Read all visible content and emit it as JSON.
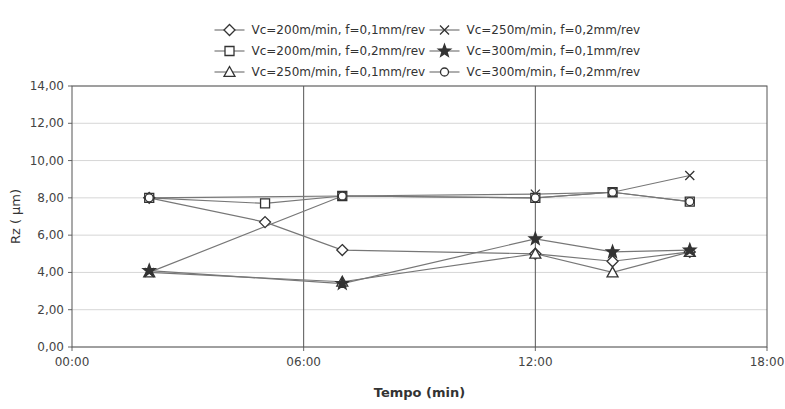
{
  "chart_data": {
    "type": "line",
    "xlabel": "Tempo (min)",
    "ylabel": "Rz ( μm)",
    "xlim": [
      0,
      1080
    ],
    "ylim": [
      0,
      14
    ],
    "xticks": [
      {
        "value": 0,
        "label": "00:00"
      },
      {
        "value": 360,
        "label": "06:00"
      },
      {
        "value": 720,
        "label": "12:00"
      },
      {
        "value": 1080,
        "label": "18:00"
      }
    ],
    "yticks": [
      {
        "value": 0,
        "label": "0,00"
      },
      {
        "value": 2,
        "label": "2,00"
      },
      {
        "value": 4,
        "label": "4,00"
      },
      {
        "value": 6,
        "label": "6,00"
      },
      {
        "value": 8,
        "label": "8,00"
      },
      {
        "value": 10,
        "label": "10,00"
      },
      {
        "value": 12,
        "label": "12,00"
      },
      {
        "value": 14,
        "label": "14,00"
      }
    ],
    "vlines": [
      360,
      720
    ],
    "grid": true,
    "legend": "top",
    "series": [
      {
        "name": "Vc=200m/min, f=0,1mm/rev",
        "x": [
          120,
          300,
          420,
          720,
          840,
          960
        ],
        "values": [
          8.0,
          6.7,
          5.2,
          5.0,
          4.6,
          5.1
        ],
        "marker": "diamond",
        "color": "#777777"
      },
      {
        "name": "Vc=200m/min, f=0,2mm/rev",
        "x": [
          120,
          300,
          420,
          720,
          840,
          960
        ],
        "values": [
          8.0,
          7.7,
          8.1,
          8.0,
          8.3,
          7.8
        ],
        "marker": "square",
        "color": "#777777"
      },
      {
        "name": "Vc=250m/min, f=0,1mm/rev",
        "x": [
          120,
          420,
          720,
          840,
          960
        ],
        "values": [
          4.0,
          3.5,
          5.0,
          4.0,
          5.1
        ],
        "marker": "triangle",
        "color": "#777777"
      },
      {
        "name": "Vc=250m/min, f=0,2mm/rev",
        "x": [
          120,
          420,
          720,
          840,
          960
        ],
        "values": [
          4.0,
          8.1,
          8.2,
          8.3,
          9.2
        ],
        "marker": "x",
        "color": "#777777"
      },
      {
        "name": "Vc=300m/min, f=0,1mm/rev",
        "x": [
          120,
          420,
          720,
          840,
          960
        ],
        "values": [
          4.1,
          3.4,
          5.8,
          5.1,
          5.2
        ],
        "marker": "star",
        "color": "#777777"
      },
      {
        "name": "Vc=300m/min, f=0,2mm/rev",
        "x": [
          120,
          420,
          720,
          840,
          960
        ],
        "values": [
          8.0,
          8.1,
          8.0,
          8.3,
          7.8
        ],
        "marker": "circle",
        "color": "#777777"
      }
    ]
  }
}
